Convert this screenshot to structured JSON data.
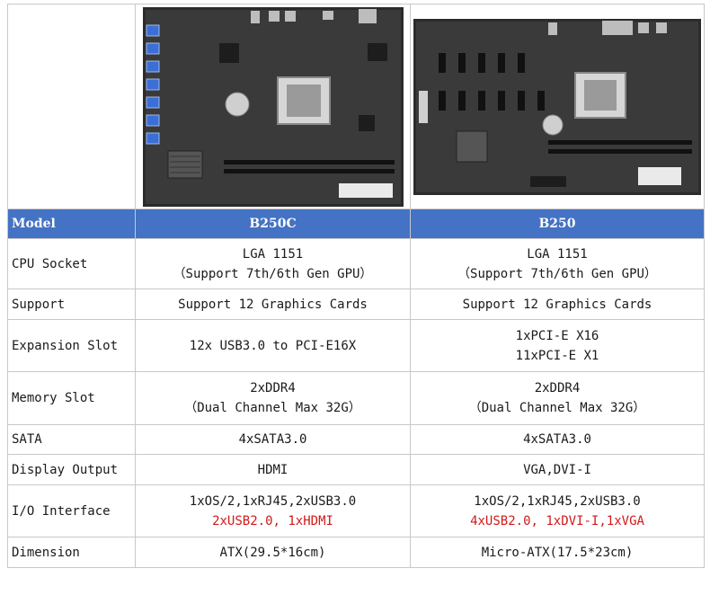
{
  "colors": {
    "header_bg": "#4472c4",
    "header_text": "#ffffff",
    "highlight_text": "#d21919",
    "border": "#c8c8c8"
  },
  "header": {
    "label": "Model",
    "col1": "B250C",
    "col2": "B250"
  },
  "rows": [
    {
      "label": "CPU Socket",
      "col1": [
        "LGA 1151",
        "（Support 7th/6th Gen GPU）"
      ],
      "col2": [
        "LGA 1151",
        "（Support 7th/6th Gen GPU）"
      ]
    },
    {
      "label": "Support",
      "col1": [
        "Support 12 Graphics Cards"
      ],
      "col2": [
        "Support 12 Graphics Cards"
      ]
    },
    {
      "label": "Expansion Slot",
      "col1": [
        "12x USB3.0 to PCI-E16X"
      ],
      "col2": [
        "1xPCI-E X16",
        "11xPCI-E X1"
      ]
    },
    {
      "label": "Memory Slot",
      "col1": [
        "2xDDR4",
        "（Dual Channel Max 32G）"
      ],
      "col2": [
        "2xDDR4",
        "（Dual Channel Max 32G）"
      ]
    },
    {
      "label": "SATA",
      "col1": [
        "4xSATA3.0"
      ],
      "col2": [
        "4xSATA3.0"
      ]
    },
    {
      "label": "Display Output",
      "col1": [
        "HDMI"
      ],
      "col2": [
        "VGA,DVI-I"
      ]
    },
    {
      "label": "I/O Interface",
      "col1": [
        "1xOS/2,1xRJ45,2xUSB3.0",
        "2xUSB2.0, 1xHDMI"
      ],
      "col2": [
        "1xOS/2,1xRJ45,2xUSB3.0",
        "4xUSB2.0, 1xDVI-I,1xVGA"
      ]
    },
    {
      "label": "Dimension",
      "col1": [
        "ATX(29.5*16cm)"
      ],
      "col2": [
        "Micro-ATX(17.5*23cm)"
      ]
    }
  ]
}
